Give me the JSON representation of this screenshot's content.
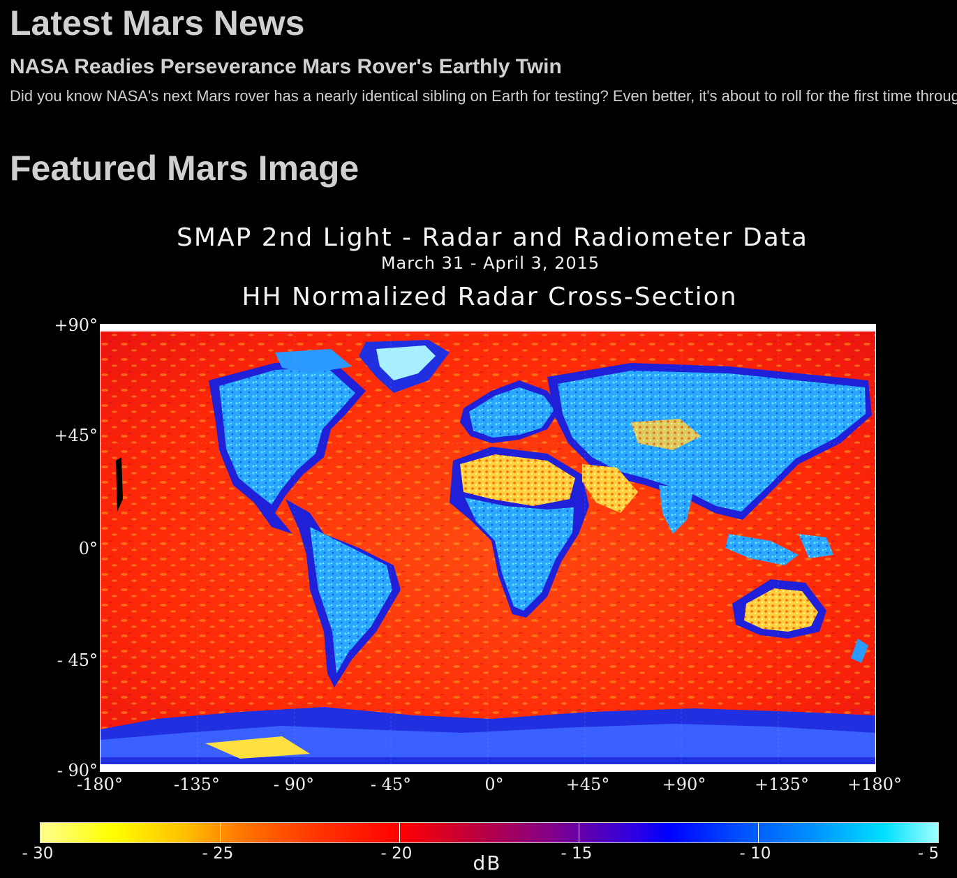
{
  "sections": {
    "news_heading": "Latest Mars News",
    "news_title": "NASA Readies Perseverance Mars Rover's Earthly Twin",
    "news_teaser": "Did you know NASA's next Mars rover has a nearly identical sibling on Earth for testing? Even better, it's about to roll for the first time through a replica Martian landscape.",
    "featured_heading": "Featured Mars Image"
  },
  "featured_image": {
    "title_line1": "SMAP 2nd Light - Radar and Radiometer Data",
    "title_line2": "March 31 - April 3, 2015",
    "title_line3": "HH Normalized Radar Cross-Section",
    "latitude_labels": [
      "+90°",
      "+45°",
      "0°",
      "- 45°",
      "- 90°"
    ],
    "longitude_labels": [
      "-180°",
      "-135°",
      "- 90°",
      "- 45°",
      "0°",
      "+45°",
      "+90°",
      "+135°",
      "+180°"
    ],
    "colorbar_labels": [
      "- 30",
      "- 25",
      "- 20",
      "- 15",
      "- 10",
      "- 5"
    ],
    "colorbar_unit": "dB",
    "colors": {
      "ocean": "#ff3a10",
      "land": "#28b8ff",
      "land_edge": "#2020e0",
      "desert": "#ffe040",
      "ice": "#3050ff"
    }
  }
}
